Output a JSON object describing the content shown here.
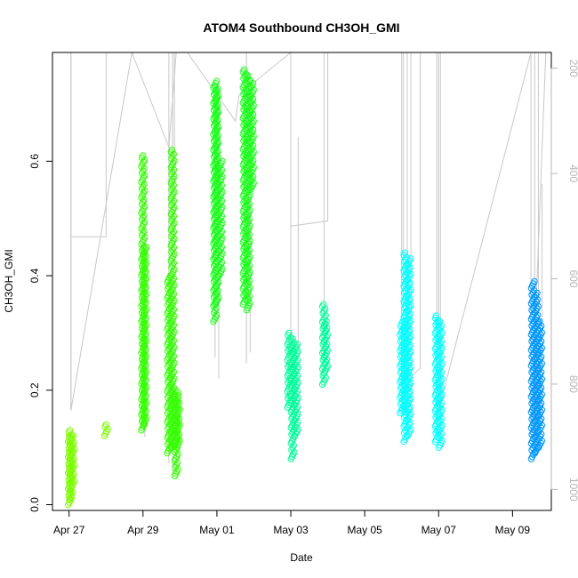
{
  "chart_data": {
    "type": "scatter",
    "title": "ATOM4 Southbound CH3OH_GMI",
    "xlabel": "Date",
    "ylabel": "CH3OH_GMI",
    "x_ticks": [
      "Apr 27",
      "Apr 29",
      "May 01",
      "May 03",
      "May 05",
      "May 07",
      "May 09"
    ],
    "x_tick_days": [
      0,
      2,
      4,
      6,
      8,
      10,
      12
    ],
    "xlim_days": [
      -0.45,
      13.05
    ],
    "ylim": [
      -0.01,
      0.79
    ],
    "y_ticks": [
      "0.0",
      "0.2",
      "0.4",
      "0.6"
    ],
    "y_tick_values": [
      0.0,
      0.2,
      0.4,
      0.6
    ],
    "right_axis": {
      "description": "pressure (hPa), inverted",
      "ticks": [
        "200",
        "400",
        "600",
        "800",
        "1000"
      ],
      "tick_values": [
        200,
        400,
        600,
        800,
        1000
      ],
      "lim": [
        1040,
        170
      ],
      "color": "#b5b5b5"
    },
    "grid": false,
    "series": [
      {
        "color": "#7cfc00",
        "segments": [
          [
            0.02,
            0.0,
            0.02,
            0.13
          ],
          [
            0.05,
            0.01,
            0.05,
            0.12
          ],
          [
            0.1,
            0.03,
            0.1,
            0.12
          ],
          [
            1.0,
            0.12,
            1.0,
            0.14
          ]
        ]
      },
      {
        "color": "#33ff00",
        "segments": [
          [
            2.0,
            0.13,
            2.0,
            0.61
          ],
          [
            2.05,
            0.14,
            2.05,
            0.45
          ],
          [
            2.7,
            0.09,
            2.7,
            0.4
          ],
          [
            2.8,
            0.1,
            2.8,
            0.62
          ],
          [
            2.9,
            0.05,
            2.9,
            0.2
          ],
          [
            2.95,
            0.1,
            2.95,
            0.19
          ]
        ]
      },
      {
        "color": "#19ff19",
        "segments": [
          [
            3.95,
            0.32,
            3.95,
            0.74
          ],
          [
            4.0,
            0.35,
            4.0,
            0.73
          ],
          [
            4.1,
            0.4,
            4.1,
            0.6
          ],
          [
            4.75,
            0.35,
            4.75,
            0.76
          ],
          [
            4.85,
            0.34,
            4.85,
            0.75
          ],
          [
            4.95,
            0.55,
            4.95,
            0.74
          ]
        ]
      },
      {
        "color": "#00ff99",
        "segments": [
          [
            5.95,
            0.17,
            5.95,
            0.3
          ],
          [
            6.05,
            0.08,
            6.05,
            0.29
          ],
          [
            6.15,
            0.12,
            6.15,
            0.28
          ],
          [
            6.9,
            0.21,
            6.9,
            0.35
          ],
          [
            6.95,
            0.23,
            6.95,
            0.32
          ]
        ]
      },
      {
        "color": "#00ffff",
        "segments": [
          [
            9.0,
            0.16,
            9.0,
            0.32
          ],
          [
            9.1,
            0.11,
            9.1,
            0.44
          ],
          [
            9.2,
            0.12,
            9.2,
            0.43
          ],
          [
            9.95,
            0.11,
            9.95,
            0.33
          ],
          [
            10.05,
            0.1,
            10.05,
            0.32
          ]
        ]
      },
      {
        "color": "#0099ff",
        "segments": [
          [
            12.55,
            0.08,
            12.55,
            0.39
          ],
          [
            12.65,
            0.09,
            12.65,
            0.37
          ],
          [
            12.75,
            0.1,
            12.75,
            0.32
          ]
        ]
      }
    ],
    "pressure_lines": {
      "color": "#c8c8c8",
      "polyline": [
        [
          0.05,
          170
        ],
        [
          0.05,
          520
        ],
        [
          1.0,
          520
        ],
        [
          1.0,
          170
        ],
        [
          0.05,
          170
        ],
        [
          0.05,
          850
        ],
        [
          1.7,
          170
        ],
        [
          2.7,
          350
        ],
        [
          2.9,
          170
        ],
        [
          3.2,
          170
        ],
        [
          4.5,
          300
        ],
        [
          4.6,
          250
        ],
        [
          6.0,
          170
        ],
        [
          6.0,
          500
        ],
        [
          7.0,
          490
        ],
        [
          7.0,
          170
        ],
        [
          9.0,
          170
        ],
        [
          9.0,
          800
        ],
        [
          9.5,
          770
        ],
        [
          9.5,
          170
        ],
        [
          10.0,
          170
        ],
        [
          10.0,
          850
        ],
        [
          12.5,
          170
        ],
        [
          12.5,
          900
        ],
        [
          12.9,
          170
        ]
      ],
      "spikes": [
        [
          0.05,
          170,
          850
        ],
        [
          2.05,
          400,
          900
        ],
        [
          2.7,
          170,
          950
        ],
        [
          2.8,
          170,
          970
        ],
        [
          2.85,
          170,
          900
        ],
        [
          3.95,
          300,
          750
        ],
        [
          4.05,
          250,
          790
        ],
        [
          4.8,
          170,
          760
        ],
        [
          4.9,
          350,
          740
        ],
        [
          6.0,
          400,
          800
        ],
        [
          6.2,
          330,
          740
        ],
        [
          6.9,
          170,
          760
        ],
        [
          9.05,
          170,
          850
        ],
        [
          9.15,
          170,
          870
        ],
        [
          9.25,
          170,
          860
        ],
        [
          9.95,
          170,
          870
        ],
        [
          10.05,
          170,
          860
        ],
        [
          12.6,
          170,
          900
        ],
        [
          12.7,
          170,
          880
        ],
        [
          12.8,
          420,
          870
        ]
      ]
    }
  }
}
